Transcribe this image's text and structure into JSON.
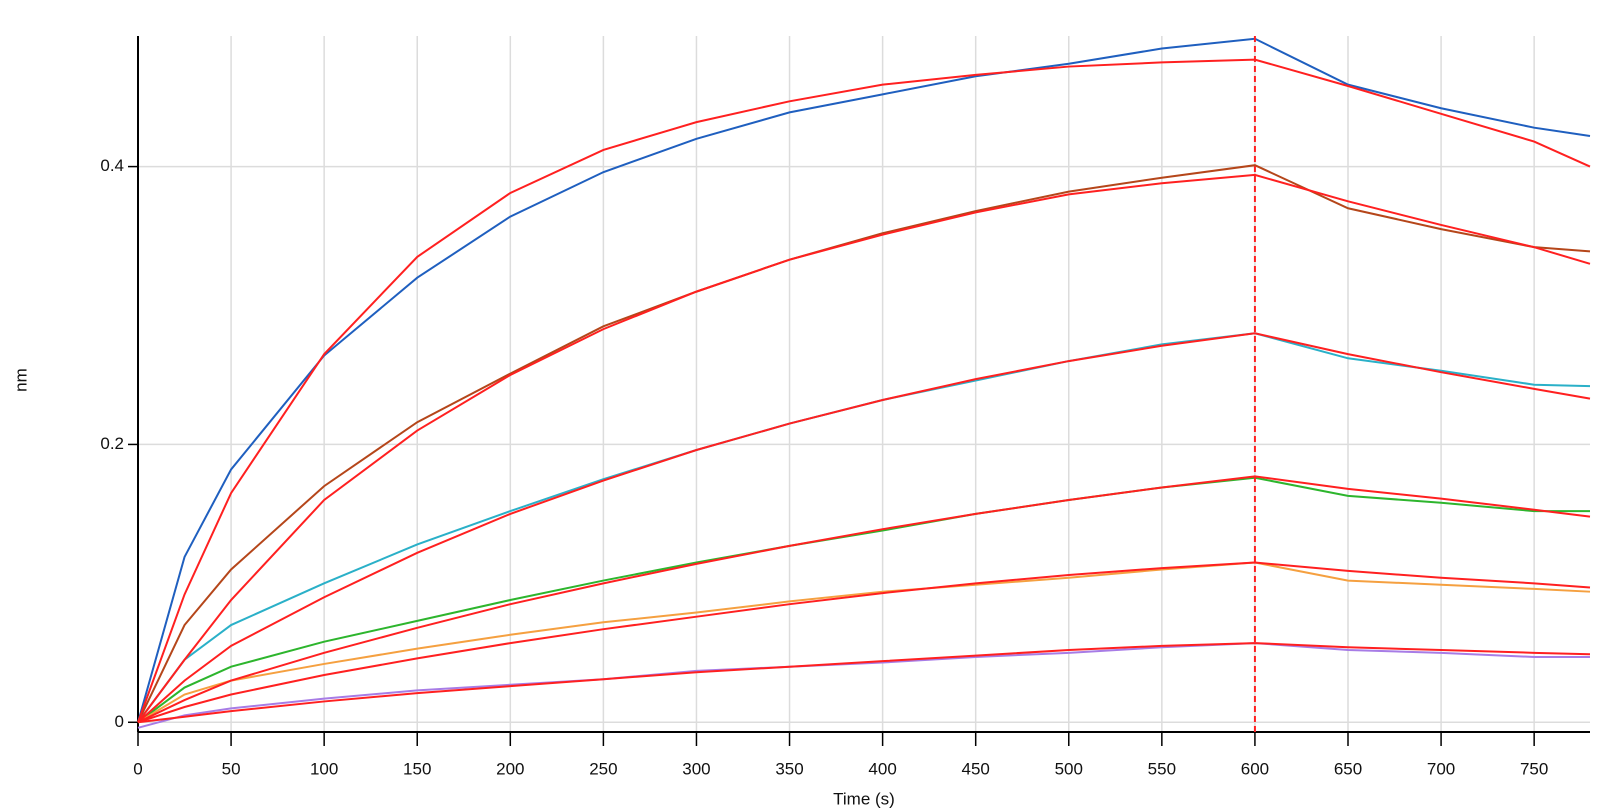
{
  "chart_data": {
    "type": "line",
    "xlabel": "Time (s)",
    "ylabel": "nm",
    "x": [
      0,
      25,
      50,
      100,
      150,
      200,
      250,
      300,
      350,
      400,
      450,
      500,
      550,
      600,
      650,
      700,
      750,
      780
    ],
    "series": [
      {
        "color": "#1f5fbf",
        "values": [
          0,
          0.119,
          0.182,
          0.264,
          0.32,
          0.364,
          0.396,
          0.42,
          0.439,
          0.452,
          0.465,
          0.474,
          0.485,
          0.492,
          0.459,
          0.442,
          0.428,
          0.422
        ]
      },
      {
        "color": "#b5461a",
        "values": [
          0,
          0.07,
          0.11,
          0.17,
          0.216,
          0.251,
          0.285,
          0.31,
          0.333,
          0.352,
          0.368,
          0.382,
          0.392,
          0.401,
          0.37,
          0.355,
          0.342,
          0.339
        ]
      },
      {
        "color": "#2ab0c8",
        "values": [
          0,
          0.045,
          0.07,
          0.1,
          0.128,
          0.152,
          0.175,
          0.196,
          0.215,
          0.232,
          0.246,
          0.26,
          0.272,
          0.28,
          0.262,
          0.253,
          0.243,
          0.242
        ]
      },
      {
        "color": "#2db52d",
        "values": [
          0,
          0.025,
          0.04,
          0.058,
          0.073,
          0.088,
          0.102,
          0.115,
          0.127,
          0.138,
          0.15,
          0.16,
          0.169,
          0.176,
          0.163,
          0.158,
          0.152,
          0.152
        ]
      },
      {
        "color": "#f5a040",
        "values": [
          0,
          0.02,
          0.03,
          0.042,
          0.053,
          0.063,
          0.072,
          0.079,
          0.087,
          0.094,
          0.099,
          0.104,
          0.11,
          0.115,
          0.102,
          0.099,
          0.096,
          0.094
        ]
      },
      {
        "color": "#a77ce6",
        "values": [
          -0.004,
          0.005,
          0.01,
          0.017,
          0.023,
          0.027,
          0.031,
          0.037,
          0.04,
          0.043,
          0.047,
          0.05,
          0.054,
          0.057,
          0.052,
          0.05,
          0.047,
          0.047
        ]
      },
      {
        "color": "#ff2020",
        "values": [
          0,
          0.092,
          0.165,
          0.265,
          0.335,
          0.381,
          0.412,
          0.432,
          0.447,
          0.459,
          0.466,
          0.472,
          0.475,
          0.477,
          0.458,
          0.438,
          0.418,
          0.4
        ]
      },
      {
        "color": "#ff2020",
        "values": [
          0,
          0.045,
          0.088,
          0.16,
          0.21,
          0.25,
          0.283,
          0.31,
          0.333,
          0.351,
          0.367,
          0.38,
          0.388,
          0.394,
          0.375,
          0.358,
          0.342,
          0.33
        ]
      },
      {
        "color": "#ff2020",
        "values": [
          0,
          0.03,
          0.055,
          0.09,
          0.122,
          0.15,
          0.174,
          0.196,
          0.215,
          0.232,
          0.247,
          0.26,
          0.271,
          0.28,
          0.265,
          0.252,
          0.24,
          0.233
        ]
      },
      {
        "color": "#ff2020",
        "values": [
          0,
          0.016,
          0.03,
          0.05,
          0.068,
          0.085,
          0.1,
          0.114,
          0.127,
          0.139,
          0.15,
          0.16,
          0.169,
          0.177,
          0.168,
          0.161,
          0.153,
          0.148
        ]
      },
      {
        "color": "#ff2020",
        "values": [
          0,
          0.011,
          0.02,
          0.034,
          0.046,
          0.057,
          0.067,
          0.076,
          0.085,
          0.093,
          0.1,
          0.106,
          0.111,
          0.115,
          0.109,
          0.104,
          0.1,
          0.097
        ]
      },
      {
        "color": "#ff2020",
        "values": [
          0,
          0.004,
          0.008,
          0.015,
          0.021,
          0.026,
          0.031,
          0.036,
          0.04,
          0.044,
          0.048,
          0.052,
          0.055,
          0.057,
          0.054,
          0.052,
          0.05,
          0.049
        ]
      }
    ],
    "xlim": [
      0,
      780
    ],
    "xticks": [
      0,
      50,
      100,
      150,
      200,
      250,
      300,
      350,
      400,
      450,
      500,
      550,
      600,
      650,
      700,
      750
    ],
    "ylim": [
      -0.007,
      0.494
    ],
    "yticks": [
      0,
      0.2,
      0.4
    ],
    "grid": true,
    "vline": {
      "x": 600,
      "color": "#ff2020"
    }
  }
}
